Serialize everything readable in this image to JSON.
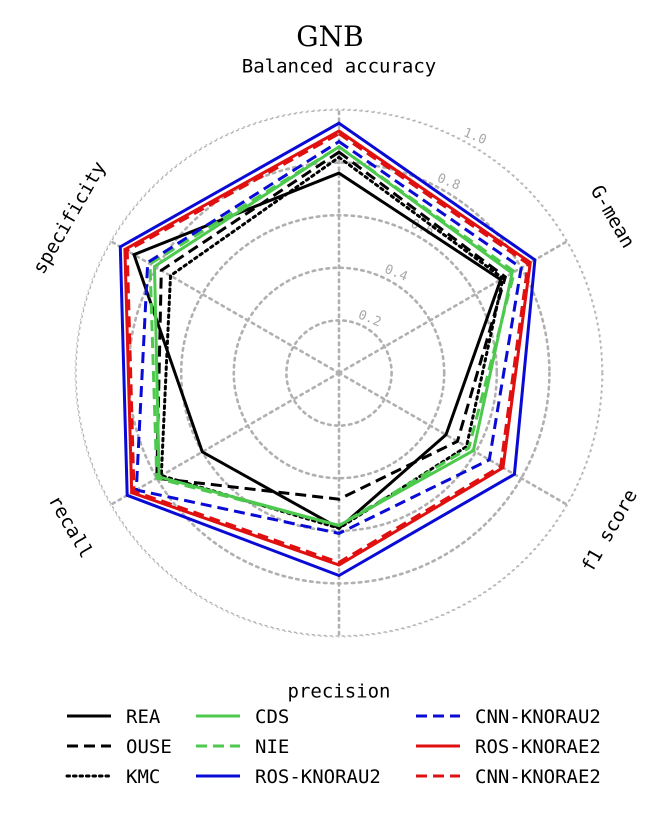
{
  "chart_data": {
    "type": "radar",
    "title": "GNB",
    "axes": [
      "Balanced accuracy",
      "G-mean",
      "f1 score",
      "precision",
      "recall",
      "specificity"
    ],
    "rlim": [
      0,
      1
    ],
    "rticks": [
      "0.2",
      "0.4",
      "0.6",
      "0.8",
      "1.0"
    ],
    "rtick_values": [
      0.2,
      0.4,
      0.6,
      0.8,
      1.0
    ],
    "grid": true,
    "legend_position": "bottom",
    "series": [
      {
        "name": "REA",
        "color": "#000000",
        "style": "solid",
        "values": [
          0.76,
          0.71,
          0.47,
          0.59,
          0.6,
          0.9
        ]
      },
      {
        "name": "OUSE",
        "color": "#000000",
        "style": "dashed",
        "values": [
          0.84,
          0.73,
          0.52,
          0.48,
          0.8,
          0.78
        ]
      },
      {
        "name": "KMC",
        "color": "#000000",
        "style": "dotted",
        "values": [
          0.82,
          0.72,
          0.56,
          0.59,
          0.78,
          0.74
        ]
      },
      {
        "name": "CDS",
        "color": "#4dc94d",
        "style": "solid",
        "values": [
          0.86,
          0.76,
          0.59,
          0.58,
          0.79,
          0.81
        ]
      },
      {
        "name": "NIE",
        "color": "#4dc94d",
        "style": "dashed",
        "values": [
          0.86,
          0.77,
          0.57,
          0.58,
          0.8,
          0.83
        ]
      },
      {
        "name": "ROS-KNORAU2",
        "color": "#0a0ad6",
        "style": "solid",
        "values": [
          0.95,
          0.86,
          0.77,
          0.77,
          0.93,
          0.96
        ]
      },
      {
        "name": "CNN-KNORAU2",
        "color": "#0a0ad6",
        "style": "dashed",
        "values": [
          0.88,
          0.8,
          0.66,
          0.61,
          0.89,
          0.84
        ]
      },
      {
        "name": "ROS-KNORAE2",
        "color": "#e01010",
        "style": "solid",
        "values": [
          0.92,
          0.84,
          0.72,
          0.73,
          0.91,
          0.94
        ]
      },
      {
        "name": "CNN-KNORAE2",
        "color": "#e01010",
        "style": "dashed",
        "values": [
          0.91,
          0.83,
          0.71,
          0.72,
          0.9,
          0.93
        ]
      }
    ]
  }
}
